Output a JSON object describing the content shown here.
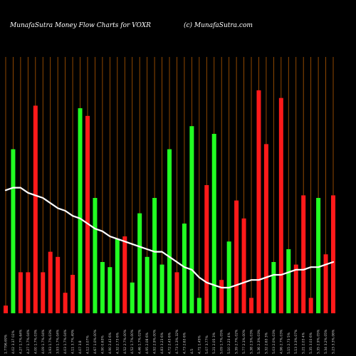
{
  "header": {
    "left": "MunafaSutra  Money Flow  Charts for VOXR",
    "right": "(c) MunafaSutra.com"
  },
  "chart_data": {
    "type": "bar",
    "title": "MunafaSutra  Money Flow  Charts for VOXR",
    "ylim": [
      0,
      100
    ],
    "categories": [
      "1.7796.69%",
      "4.02 3.37 02%",
      "4.27 1.7%.64%",
      "4.27 1.7%.04%",
      "4.00 1.7%.03%",
      "4.09 1.7%.04%",
      "3.93 1.7%.03%",
      "3.93 1.7%.04%",
      "4.03 1.7%.04%",
      "4.11 3.7%.49%",
      "4.07 3.8",
      "4.12 3.07%",
      "4.67 1.0%.00%",
      "4.90 0.63%",
      "4.90 2.43 6%",
      "4.32 2.73 6%",
      "4.52 2.7%.00%",
      "4.52 1.7%.00%",
      "4.46 1.7%.02%",
      "4.95 2.08 6%",
      "4.92 2.9%.00%",
      "4.83 3.23 6%",
      "4.72 2.43 6%",
      "4.73 1.3%.32%",
      "4.73 2.63 6%",
      "4.5",
      "4.71 1.45%",
      "5.07 3.77%",
      "5.21 2.05 3%",
      "5.09 1.7%.05%",
      "5.10 2.23 4%",
      "5.39 2.7%.02%",
      "5.77 2.1%.00%",
      "5.38 2.5%.03%",
      "5.36 2.3%.03%",
      "5.32 2.63 3%",
      "5.03 2.0%.03%",
      "4.96 2.7%.03%",
      "5.15 2.73 5%",
      "5.13 3.3%.07%",
      "5.21 2.03 4%",
      "5.35 3.03 6%",
      "5.35 2.9%.05%",
      "5.34 3.2%.05%",
      "5.23 3.3%.06%"
    ],
    "series": [
      {
        "values": [
          3,
          64,
          16,
          16,
          81,
          16,
          24,
          22,
          8,
          15,
          80,
          77,
          45,
          20,
          18,
          29,
          30,
          12,
          39,
          22,
          45,
          19,
          64,
          16,
          35,
          73,
          6,
          50,
          70,
          13,
          28,
          44,
          37,
          6,
          87,
          66,
          20,
          84,
          25,
          19,
          46,
          6,
          45,
          23,
          46
        ]
      },
      {
        "values": [
          1,
          0,
          0,
          0,
          0,
          0,
          0,
          0,
          0,
          0,
          0,
          0,
          0,
          0,
          0,
          0,
          0,
          0,
          0,
          0,
          0,
          0,
          0,
          0,
          0,
          0,
          0,
          0,
          0,
          0,
          0,
          0,
          0,
          0,
          0,
          0,
          0,
          0,
          0,
          0,
          0,
          0,
          0,
          0,
          0
        ]
      },
      {
        "values": [
          0,
          1,
          0,
          0,
          0,
          0,
          0,
          0,
          0,
          0,
          1,
          0,
          1,
          1,
          1,
          1,
          0,
          1,
          1,
          1,
          1,
          1,
          1,
          0,
          1,
          1,
          1,
          0,
          1,
          0,
          1,
          0,
          0,
          0,
          0,
          0,
          1,
          0,
          1,
          0,
          0,
          0,
          1,
          0,
          0
        ]
      },
      {
        "values": [
          48,
          49,
          49,
          47,
          46,
          45,
          43,
          41,
          40,
          38,
          37,
          35,
          33,
          32,
          30,
          29,
          28,
          27,
          26,
          25,
          24,
          24,
          22,
          20,
          18,
          17,
          14,
          12,
          11,
          10,
          10,
          11,
          12,
          13,
          13,
          14,
          15,
          15,
          16,
          17,
          17,
          18,
          18,
          19,
          20
        ]
      }
    ],
    "colors": {
      "up": "#22ff22",
      "down": "#ff1a1a",
      "line": "#ffffff",
      "grid": "#b35900",
      "background": "#000000"
    },
    "grid": true
  }
}
